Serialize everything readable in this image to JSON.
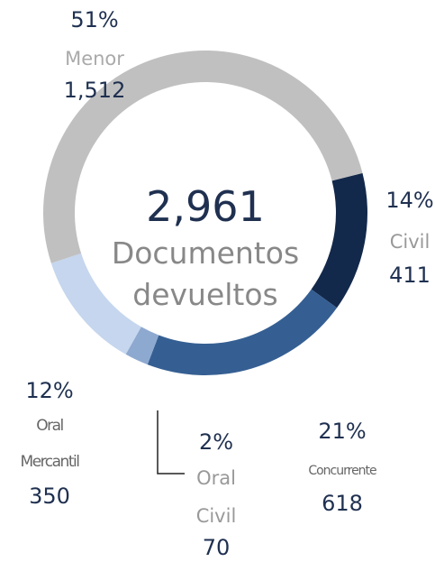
{
  "chart_data": {
    "type": "donut",
    "center_value": "2,961",
    "center_label": [
      "Documentos",
      "devueltos"
    ],
    "categories": [
      "Civil",
      "Concurrente",
      "Oral Civil",
      "Oral Mercantil",
      "Menor"
    ],
    "values": [
      411,
      618,
      70,
      350,
      1512
    ],
    "value_labels": [
      "411",
      "618",
      "70",
      "350",
      "1,512"
    ],
    "percent_labels": [
      "14%",
      "21%",
      "2%",
      "12%",
      "51%"
    ],
    "colors": [
      "#13294b",
      "#355f93",
      "#8ea9d0",
      "#c5d6ee",
      "#c0c0c0"
    ]
  }
}
